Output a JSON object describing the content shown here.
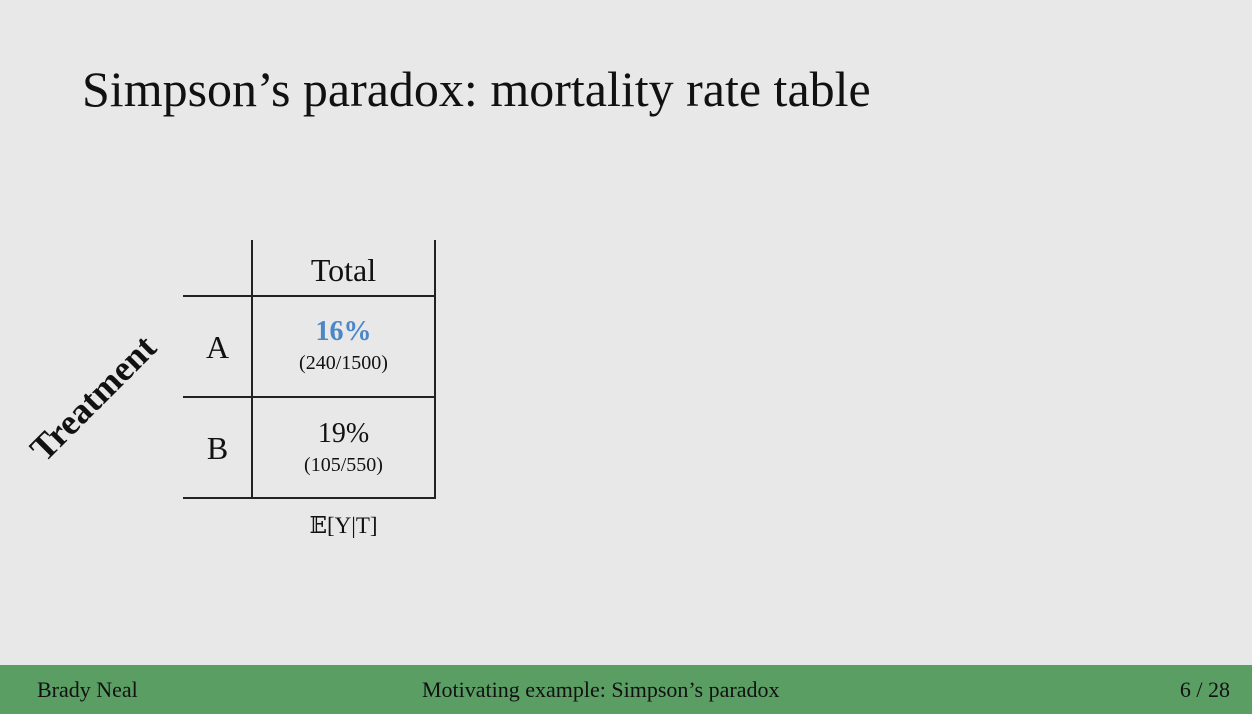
{
  "slide": {
    "title": "Simpson’s paradox: mortality rate table"
  },
  "table": {
    "row_header": "Treatment",
    "column_header": "Total",
    "rows": [
      {
        "label": "A",
        "value": "16%",
        "detail": "(240/1500)"
      },
      {
        "label": "B",
        "value": "19%",
        "detail": "(105/550)"
      }
    ],
    "caption": "𝔼[Y|T]"
  },
  "footer": {
    "author": "Brady Neal",
    "section": "Motivating example: Simpson’s paradox",
    "page": "6 / 28"
  },
  "colors": {
    "highlight": "#4a86c8",
    "footer_bg": "#5a9e64",
    "background": "#e8e8e8"
  }
}
